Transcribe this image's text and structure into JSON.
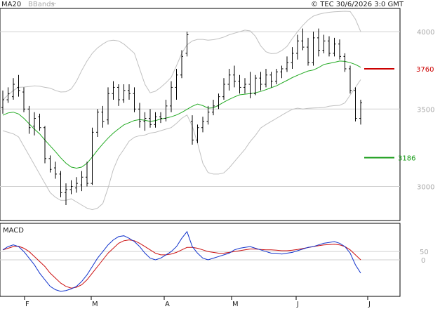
{
  "header": {
    "legend_ma": "MA20",
    "legend_bb": "BBands",
    "copyright": "© TEC 30/6/2026 3:0 GMT"
  },
  "colors": {
    "price": "#000000",
    "ma20": "#22aa22",
    "bbands": "#c0c0c0",
    "grid": "#d0d0d0",
    "resistance": "#cc0000",
    "support": "#119911",
    "macd": "#1133cc",
    "signal": "#cc1111"
  },
  "chart_data": [
    {
      "type": "candlestick",
      "title": "",
      "x_ticks": [
        "F",
        "M",
        "A",
        "M",
        "J",
        "J"
      ],
      "y_ticks": [
        "4000",
        "3500",
        "3000"
      ],
      "ylim": [
        2780,
        4150
      ],
      "levels": [
        {
          "label": "3760",
          "value": 3760,
          "color": "#cc0000"
        },
        {
          "label": "3186",
          "value": 3186,
          "color": "#119911"
        }
      ],
      "grid": true,
      "series": [
        {
          "name": "MA20",
          "color": "#22aa22",
          "values": [
            3460,
            3475,
            3480,
            3468,
            3440,
            3405,
            3370,
            3340,
            3300,
            3262,
            3225,
            3185,
            3150,
            3125,
            3118,
            3125,
            3150,
            3190,
            3235,
            3275,
            3312,
            3345,
            3372,
            3398,
            3412,
            3426,
            3432,
            3428,
            3420,
            3425,
            3436,
            3442,
            3450,
            3462,
            3478,
            3498,
            3518,
            3532,
            3522,
            3506,
            3508,
            3525,
            3545,
            3562,
            3578,
            3592,
            3596,
            3600,
            3605,
            3614,
            3625,
            3638,
            3650,
            3668,
            3685,
            3703,
            3718,
            3732,
            3746,
            3752,
            3768,
            3788,
            3795,
            3802,
            3810,
            3808,
            3800,
            3788,
            3770
          ]
        },
        {
          "name": "BB upper",
          "color": "#c0c0c0",
          "values": [
            3560,
            3590,
            3620,
            3640,
            3642,
            3645,
            3650,
            3648,
            3640,
            3635,
            3620,
            3610,
            3612,
            3630,
            3680,
            3750,
            3810,
            3860,
            3895,
            3920,
            3940,
            3945,
            3940,
            3920,
            3890,
            3860,
            3760,
            3660,
            3605,
            3615,
            3640,
            3670,
            3705,
            3780,
            3860,
            3915,
            3940,
            3950,
            3950,
            3945,
            3948,
            3955,
            3965,
            3980,
            3990,
            4000,
            4010,
            4005,
            3970,
            3908,
            3870,
            3858,
            3860,
            3878,
            3905,
            3955,
            4000,
            4040,
            4075,
            4100,
            4112,
            4120,
            4125,
            4128,
            4130,
            4132,
            4130,
            4080,
            4000
          ]
        },
        {
          "name": "BB lower",
          "color": "#c0c0c0",
          "values": [
            3360,
            3350,
            3340,
            3320,
            3260,
            3200,
            3140,
            3080,
            3020,
            2960,
            2930,
            2910,
            2910,
            2920,
            2900,
            2880,
            2860,
            2850,
            2860,
            2890,
            2990,
            3110,
            3190,
            3240,
            3292,
            3318,
            3328,
            3332,
            3345,
            3350,
            3360,
            3370,
            3380,
            3408,
            3440,
            3462,
            3390,
            3280,
            3150,
            3090,
            3080,
            3080,
            3088,
            3120,
            3160,
            3200,
            3240,
            3290,
            3330,
            3378,
            3400,
            3420,
            3440,
            3460,
            3480,
            3498,
            3506,
            3500,
            3505,
            3507,
            3508,
            3510,
            3518,
            3522,
            3524,
            3540,
            3590,
            3640,
            3690
          ]
        },
        {
          "name": "Price",
          "color": "#000000",
          "values": [
            3540,
            3560,
            3620,
            3650,
            3600,
            3520,
            3430,
            3420,
            3280,
            3150,
            3100,
            3020,
            2960,
            2990,
            3000,
            3010,
            3150,
            3350,
            3400,
            3480,
            3600,
            3620,
            3550,
            3600,
            3610,
            3520,
            3440,
            3420,
            3430,
            3440,
            3460,
            3500,
            3600,
            3700,
            3750,
            3840,
            3400,
            3300,
            3340,
            3400,
            3450,
            3500,
            3560,
            3640,
            3700,
            3740,
            3650,
            3640,
            3610,
            3700,
            3730,
            3690,
            3730,
            3740,
            3760,
            3800,
            3840,
            3900,
            3950,
            3900,
            3830,
            3920,
            3960,
            3900,
            3880,
            3850,
            3800,
            3600,
            3540
          ]
        }
      ],
      "candles": [
        {
          "o": 3510,
          "h": 3620,
          "l": 3470,
          "c": 3560
        },
        {
          "o": 3560,
          "h": 3640,
          "l": 3540,
          "c": 3600
        },
        {
          "o": 3580,
          "h": 3700,
          "l": 3560,
          "c": 3660
        },
        {
          "o": 3640,
          "h": 3720,
          "l": 3580,
          "c": 3620
        },
        {
          "o": 3610,
          "h": 3640,
          "l": 3480,
          "c": 3500
        },
        {
          "o": 3500,
          "h": 3520,
          "l": 3340,
          "c": 3380
        },
        {
          "o": 3390,
          "h": 3480,
          "l": 3330,
          "c": 3440
        },
        {
          "o": 3450,
          "h": 3470,
          "l": 3360,
          "c": 3380
        },
        {
          "o": 3380,
          "h": 3390,
          "l": 3150,
          "c": 3180
        },
        {
          "o": 3180,
          "h": 3200,
          "l": 3090,
          "c": 3110
        },
        {
          "o": 3120,
          "h": 3160,
          "l": 3050,
          "c": 3080
        },
        {
          "o": 3080,
          "h": 3100,
          "l": 2930,
          "c": 2960
        },
        {
          "o": 2960,
          "h": 3020,
          "l": 2880,
          "c": 2980
        },
        {
          "o": 2980,
          "h": 3040,
          "l": 2950,
          "c": 3000
        },
        {
          "o": 2990,
          "h": 3060,
          "l": 2960,
          "c": 3020
        },
        {
          "o": 3010,
          "h": 3100,
          "l": 2970,
          "c": 3060
        },
        {
          "o": 3060,
          "h": 3160,
          "l": 3000,
          "c": 3020
        },
        {
          "o": 3020,
          "h": 3380,
          "l": 3010,
          "c": 3350
        },
        {
          "o": 3350,
          "h": 3500,
          "l": 3320,
          "c": 3480
        },
        {
          "o": 3480,
          "h": 3520,
          "l": 3380,
          "c": 3420
        },
        {
          "o": 3430,
          "h": 3640,
          "l": 3400,
          "c": 3600
        },
        {
          "o": 3600,
          "h": 3680,
          "l": 3560,
          "c": 3640
        },
        {
          "o": 3640,
          "h": 3660,
          "l": 3520,
          "c": 3560
        },
        {
          "o": 3560,
          "h": 3660,
          "l": 3540,
          "c": 3620
        },
        {
          "o": 3620,
          "h": 3660,
          "l": 3560,
          "c": 3600
        },
        {
          "o": 3600,
          "h": 3640,
          "l": 3480,
          "c": 3500
        },
        {
          "o": 3500,
          "h": 3540,
          "l": 3380,
          "c": 3420
        },
        {
          "o": 3420,
          "h": 3480,
          "l": 3360,
          "c": 3440
        },
        {
          "o": 3440,
          "h": 3500,
          "l": 3380,
          "c": 3400
        },
        {
          "o": 3400,
          "h": 3480,
          "l": 3380,
          "c": 3450
        },
        {
          "o": 3450,
          "h": 3480,
          "l": 3410,
          "c": 3440
        },
        {
          "o": 3440,
          "h": 3560,
          "l": 3420,
          "c": 3520
        },
        {
          "o": 3520,
          "h": 3680,
          "l": 3480,
          "c": 3640
        },
        {
          "o": 3640,
          "h": 3760,
          "l": 3560,
          "c": 3720
        },
        {
          "o": 3720,
          "h": 3880,
          "l": 3700,
          "c": 3840
        },
        {
          "o": 3860,
          "h": 4000,
          "l": 3840,
          "c": 3980
        },
        {
          "o": 3420,
          "h": 3460,
          "l": 3270,
          "c": 3300
        },
        {
          "o": 3300,
          "h": 3400,
          "l": 3280,
          "c": 3380
        },
        {
          "o": 3380,
          "h": 3450,
          "l": 3350,
          "c": 3420
        },
        {
          "o": 3420,
          "h": 3520,
          "l": 3400,
          "c": 3480
        },
        {
          "o": 3480,
          "h": 3560,
          "l": 3460,
          "c": 3520
        },
        {
          "o": 3520,
          "h": 3600,
          "l": 3500,
          "c": 3580
        },
        {
          "o": 3580,
          "h": 3700,
          "l": 3560,
          "c": 3660
        },
        {
          "o": 3660,
          "h": 3760,
          "l": 3620,
          "c": 3720
        },
        {
          "o": 3720,
          "h": 3780,
          "l": 3640,
          "c": 3680
        },
        {
          "o": 3680,
          "h": 3720,
          "l": 3600,
          "c": 3640
        },
        {
          "o": 3640,
          "h": 3700,
          "l": 3600,
          "c": 3660
        },
        {
          "o": 3660,
          "h": 3740,
          "l": 3570,
          "c": 3600
        },
        {
          "o": 3600,
          "h": 3720,
          "l": 3590,
          "c": 3700
        },
        {
          "o": 3700,
          "h": 3740,
          "l": 3620,
          "c": 3660
        },
        {
          "o": 3660,
          "h": 3760,
          "l": 3640,
          "c": 3720
        },
        {
          "o": 3720,
          "h": 3740,
          "l": 3640,
          "c": 3680
        },
        {
          "o": 3680,
          "h": 3760,
          "l": 3660,
          "c": 3740
        },
        {
          "o": 3740,
          "h": 3780,
          "l": 3700,
          "c": 3760
        },
        {
          "o": 3760,
          "h": 3840,
          "l": 3740,
          "c": 3800
        },
        {
          "o": 3800,
          "h": 3900,
          "l": 3760,
          "c": 3860
        },
        {
          "o": 3860,
          "h": 3980,
          "l": 3820,
          "c": 3940
        },
        {
          "o": 3940,
          "h": 4020,
          "l": 3880,
          "c": 3900
        },
        {
          "o": 3900,
          "h": 3960,
          "l": 3780,
          "c": 3800
        },
        {
          "o": 3800,
          "h": 4000,
          "l": 3780,
          "c": 3960
        },
        {
          "o": 3960,
          "h": 4020,
          "l": 3840,
          "c": 3880
        },
        {
          "o": 3880,
          "h": 3980,
          "l": 3860,
          "c": 3940
        },
        {
          "o": 3940,
          "h": 3970,
          "l": 3840,
          "c": 3860
        },
        {
          "o": 3860,
          "h": 3960,
          "l": 3840,
          "c": 3920
        },
        {
          "o": 3920,
          "h": 3950,
          "l": 3820,
          "c": 3840
        },
        {
          "o": 3840,
          "h": 3860,
          "l": 3740,
          "c": 3760
        },
        {
          "o": 3760,
          "h": 3780,
          "l": 3600,
          "c": 3620
        },
        {
          "o": 3620,
          "h": 3640,
          "l": 3420,
          "c": 3440
        },
        {
          "o": 3440,
          "h": 3560,
          "l": 3400,
          "c": 3540
        }
      ]
    },
    {
      "type": "line",
      "title": "MACD",
      "y_ticks": [
        "50",
        "0"
      ],
      "ylim": [
        -220,
        220
      ],
      "grid": true,
      "series": [
        {
          "name": "",
          "color": "#1133cc",
          "values": [
            60,
            80,
            90,
            80,
            50,
            10,
            -30,
            -80,
            -120,
            -160,
            -180,
            -190,
            -185,
            -175,
            -160,
            -130,
            -90,
            -40,
            10,
            50,
            90,
            120,
            140,
            145,
            130,
            110,
            80,
            40,
            10,
            0,
            10,
            30,
            50,
            80,
            130,
            170,
            80,
            40,
            10,
            0,
            10,
            20,
            30,
            40,
            60,
            70,
            75,
            80,
            70,
            60,
            50,
            40,
            40,
            35,
            40,
            45,
            55,
            65,
            75,
            80,
            90,
            100,
            105,
            110,
            100,
            80,
            40,
            -30,
            -80
          ]
        },
        {
          "name": "",
          "color": "#cc1111",
          "values": [
            60,
            70,
            80,
            82,
            70,
            50,
            20,
            -10,
            -40,
            -80,
            -110,
            -140,
            -160,
            -170,
            -165,
            -150,
            -120,
            -80,
            -40,
            0,
            40,
            70,
            100,
            115,
            120,
            115,
            100,
            80,
            60,
            40,
            30,
            30,
            35,
            45,
            60,
            75,
            75,
            70,
            60,
            50,
            45,
            40,
            40,
            45,
            50,
            55,
            60,
            65,
            65,
            62,
            60,
            60,
            58,
            55,
            55,
            58,
            62,
            68,
            74,
            80,
            85,
            90,
            92,
            94,
            90,
            80,
            60,
            30,
            0
          ]
        }
      ]
    }
  ]
}
